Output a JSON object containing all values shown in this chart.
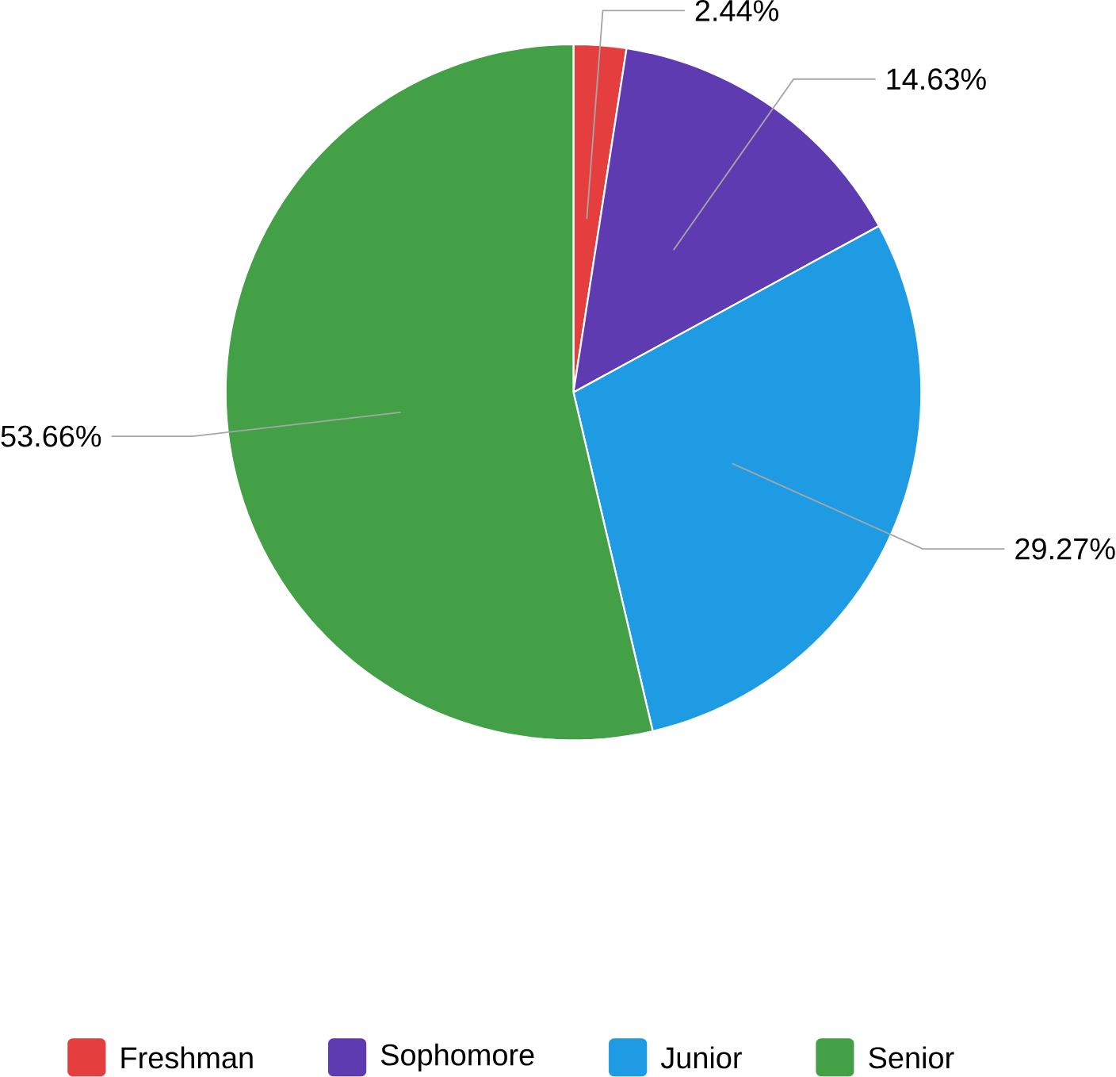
{
  "chart_data": {
    "type": "pie",
    "categories": [
      "Freshman",
      "Sophomore",
      "Junior",
      "Senior"
    ],
    "values": [
      2.44,
      14.63,
      29.27,
      53.66
    ],
    "value_labels": [
      "2.44%",
      "14.63%",
      "29.27%",
      "53.66%"
    ],
    "colors": [
      "#e53e3e",
      "#5e3bb0",
      "#1e9be3",
      "#43a047"
    ],
    "legend": "bottom"
  }
}
